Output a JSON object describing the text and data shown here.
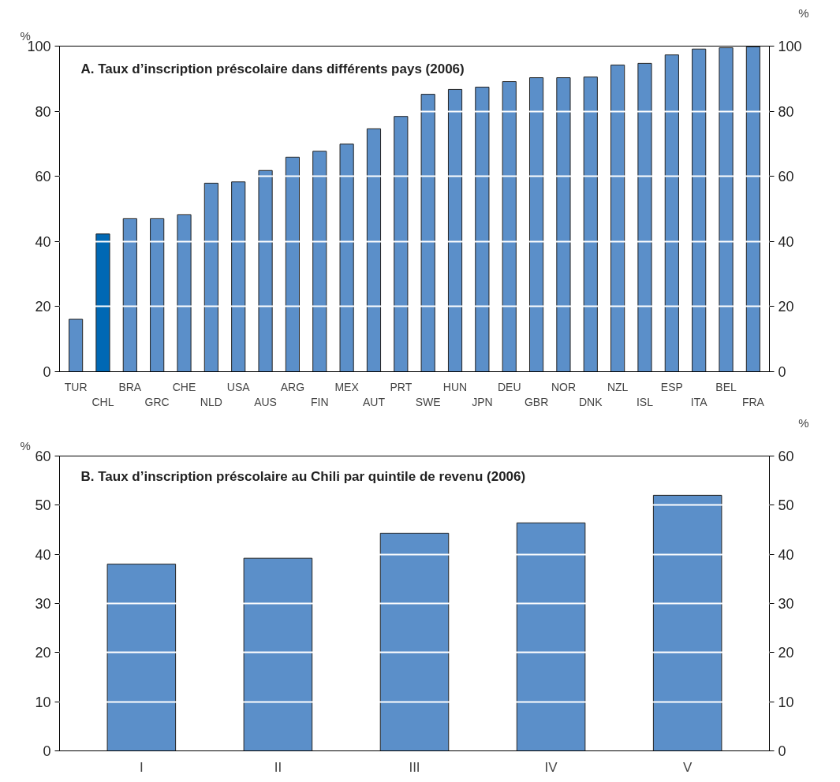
{
  "chart_data": [
    {
      "type": "bar",
      "title": "A. Taux d’inscription préscolaire dans différents pays (2006)",
      "ylabel": "%",
      "y2label": "%",
      "categories": [
        "TUR",
        "CHL",
        "BRA",
        "GRC",
        "CHE",
        "NLD",
        "USA",
        "AUS",
        "ARG",
        "FIN",
        "MEX",
        "AUT",
        "PRT",
        "SWE",
        "HUN",
        "JPN",
        "DEU",
        "GBR",
        "NOR",
        "DNK",
        "NZL",
        "ISL",
        "ESP",
        "ITA",
        "BEL",
        "FRA"
      ],
      "values": [
        16.1,
        42.3,
        47.0,
        47.0,
        48.2,
        57.9,
        58.3,
        61.8,
        65.9,
        67.7,
        69.9,
        74.6,
        78.4,
        85.2,
        86.7,
        87.4,
        89.1,
        90.3,
        90.3,
        90.5,
        94.2,
        94.7,
        97.3,
        99.1,
        99.5,
        99.8
      ],
      "colors": [
        "#5b8fc9",
        "#0068b4",
        "#5b8fc9",
        "#5b8fc9",
        "#5b8fc9",
        "#5b8fc9",
        "#5b8fc9",
        "#5b8fc9",
        "#5b8fc9",
        "#5b8fc9",
        "#5b8fc9",
        "#5b8fc9",
        "#5b8fc9",
        "#5b8fc9",
        "#5b8fc9",
        "#5b8fc9",
        "#5b8fc9",
        "#5b8fc9",
        "#5b8fc9",
        "#5b8fc9",
        "#5b8fc9",
        "#5b8fc9",
        "#5b8fc9",
        "#5b8fc9",
        "#5b8fc9",
        "#5b8fc9"
      ],
      "ylim": [
        0,
        100
      ],
      "yticks": [
        0,
        20,
        40,
        60,
        80,
        100
      ],
      "y2lim": [
        0,
        100
      ],
      "y2ticks": [
        0,
        20,
        40,
        60,
        80,
        100
      ],
      "grid": "y"
    },
    {
      "type": "bar",
      "title": "B. Taux d’inscription préscolaire au Chili par quintile de revenu (2006)",
      "ylabel": "%",
      "y2label": "%",
      "categories": [
        "I",
        "II",
        "III",
        "IV",
        "V"
      ],
      "values": [
        38.0,
        39.2,
        44.3,
        46.4,
        52.0
      ],
      "colors": [
        "#5b8fc9",
        "#5b8fc9",
        "#5b8fc9",
        "#5b8fc9",
        "#5b8fc9"
      ],
      "ylim": [
        0,
        60
      ],
      "yticks": [
        0,
        10,
        20,
        30,
        40,
        50,
        60
      ],
      "y2lim": [
        0,
        60
      ],
      "y2ticks": [
        0,
        10,
        20,
        30,
        40,
        50,
        60
      ],
      "grid": "y"
    }
  ]
}
